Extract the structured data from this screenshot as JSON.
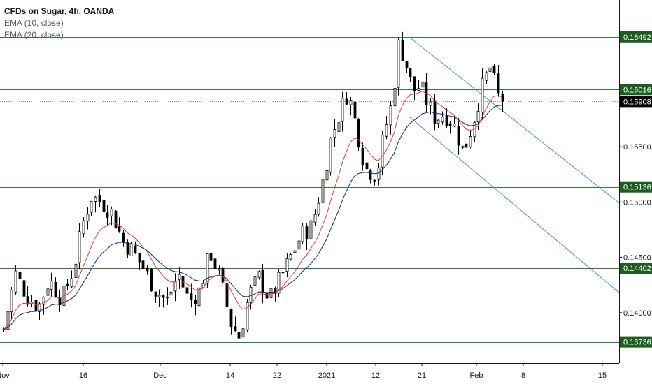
{
  "legend": {
    "title": "CFDs on Sugar, 4h, OANDA",
    "indicators": [
      "EMA (10, close)",
      "EMA (20, close)"
    ]
  },
  "colors": {
    "bull": "#ffffff",
    "bear": "#000000",
    "wick": "#000000",
    "ema10": "#e53935",
    "ema20": "#1a237e",
    "hline": "#2e7d32",
    "channel": "#4a90d9",
    "tag": "#1b5e20",
    "last": "#000000"
  },
  "chart_data": {
    "type": "candlestick",
    "title": "CFDs on Sugar, 4h, OANDA",
    "ylim": [
      0.1362,
      0.168
    ],
    "y_ticks": [
      0.14,
      0.145,
      0.15,
      0.155
    ],
    "y_tick_labels": [
      "0.14000",
      "0.14500",
      "0.15000",
      "0.15500"
    ],
    "x_ticks": [
      "Nov",
      "16",
      "Dec",
      "14",
      "22",
      "2021",
      "12",
      "21",
      "Feb",
      "8",
      "15"
    ],
    "x_tick_positions": [
      4,
      119,
      229,
      329,
      396,
      467,
      537,
      603,
      681,
      748,
      861
    ],
    "horizontal_levels": [
      {
        "value": 0.16492,
        "label": "0.16492"
      },
      {
        "value": 0.16016,
        "label": "0.16016"
      },
      {
        "value": 0.15136,
        "label": "0.15136"
      },
      {
        "value": 0.14402,
        "label": "0.14402"
      },
      {
        "value": 0.13736,
        "label": "0.13736"
      }
    ],
    "last_price": {
      "value": 0.15908,
      "label": "0.15908"
    },
    "channel": [
      {
        "x1": 585,
        "y1": 0.1649,
        "x2": 885,
        "y2": 0.1499
      },
      {
        "x1": 585,
        "y1": 0.1577,
        "x2": 885,
        "y2": 0.1418
      }
    ],
    "candle_x_range": [
      5,
      722
    ],
    "close_anchors": [
      [
        0,
        0.137
      ],
      [
        10,
        0.14
      ],
      [
        22,
        0.1435
      ],
      [
        38,
        0.1415
      ],
      [
        55,
        0.1405
      ],
      [
        70,
        0.143
      ],
      [
        88,
        0.1412
      ],
      [
        105,
        0.144
      ],
      [
        118,
        0.148
      ],
      [
        130,
        0.1505
      ],
      [
        145,
        0.15
      ],
      [
        160,
        0.149
      ],
      [
        175,
        0.1465
      ],
      [
        190,
        0.1455
      ],
      [
        205,
        0.144
      ],
      [
        222,
        0.142
      ],
      [
        238,
        0.141
      ],
      [
        255,
        0.1435
      ],
      [
        270,
        0.141
      ],
      [
        285,
        0.142
      ],
      [
        300,
        0.1455
      ],
      [
        315,
        0.143
      ],
      [
        330,
        0.139
      ],
      [
        342,
        0.1378
      ],
      [
        355,
        0.1415
      ],
      [
        370,
        0.1432
      ],
      [
        385,
        0.1412
      ],
      [
        400,
        0.143
      ],
      [
        415,
        0.145
      ],
      [
        430,
        0.147
      ],
      [
        445,
        0.1478
      ],
      [
        460,
        0.1515
      ],
      [
        472,
        0.1555
      ],
      [
        485,
        0.158
      ],
      [
        497,
        0.16
      ],
      [
        510,
        0.1565
      ],
      [
        522,
        0.153
      ],
      [
        538,
        0.1525
      ],
      [
        550,
        0.1565
      ],
      [
        560,
        0.159
      ],
      [
        570,
        0.1645
      ],
      [
        580,
        0.1625
      ],
      [
        590,
        0.16
      ],
      [
        600,
        0.1605
      ],
      [
        610,
        0.159
      ],
      [
        622,
        0.1575
      ],
      [
        635,
        0.158
      ],
      [
        648,
        0.157
      ],
      [
        662,
        0.1545
      ],
      [
        675,
        0.157
      ],
      [
        688,
        0.1602
      ],
      [
        700,
        0.1622
      ],
      [
        712,
        0.1595
      ],
      [
        722,
        0.1591
      ]
    ]
  }
}
